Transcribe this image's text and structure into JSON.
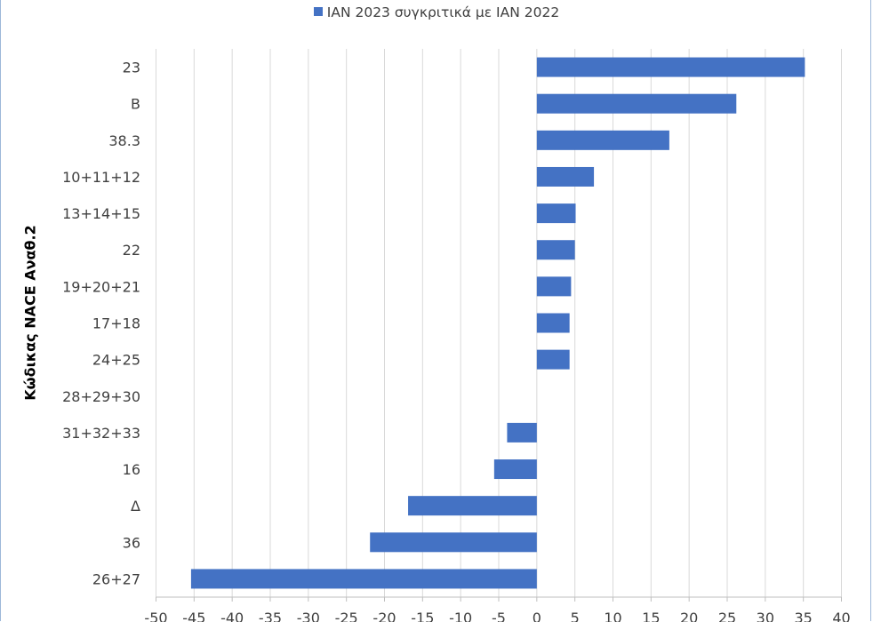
{
  "chart_data": {
    "type": "bar",
    "orientation": "horizontal",
    "categories": [
      "23",
      "B",
      "38.3",
      "10+11+12",
      "13+14+15",
      "22",
      "19+20+21",
      "17+18",
      "24+25",
      "28+29+30",
      "31+32+33",
      "16",
      "Δ",
      "36",
      "26+27"
    ],
    "series": [
      {
        "name": "ΙΑΝ 2023 συγκριτικά με ΙΑΝ 2022",
        "values": [
          35.2,
          26.2,
          17.4,
          7.5,
          5.1,
          5.0,
          4.5,
          4.3,
          4.3,
          0,
          -3.9,
          -5.6,
          -16.9,
          -21.9,
          -45.4
        ],
        "color": "#4472c4"
      }
    ],
    "xlim": [
      -50,
      40
    ],
    "xticks": [
      "-50",
      "-45",
      "-40",
      "-35",
      "-30",
      "-25",
      "-20",
      "-15",
      "-10",
      "-5",
      "0",
      "5",
      "10",
      "15",
      "20",
      "25",
      "30",
      "35",
      "40"
    ],
    "ylabel": "Κώδικας NACE Αναθ.2",
    "xlabel": "",
    "grid": true,
    "legend_position": "top"
  }
}
